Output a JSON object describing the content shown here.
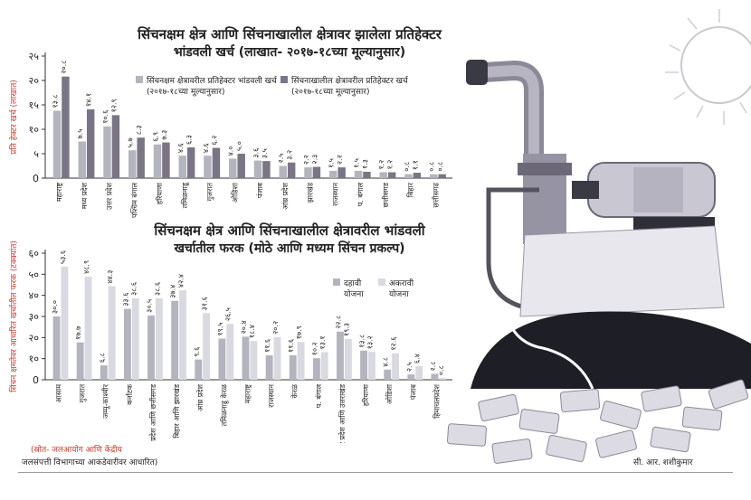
{
  "colors": {
    "light": "#d9d9e1",
    "mid": "#b4b4be",
    "dark": "#7a7585",
    "axis_label_red": "#c0392b",
    "ink": "#222222"
  },
  "chart1": {
    "type": "bar",
    "title_line1": "सिंचनक्षम क्षेत्र आणि सिंचनाखालील क्षेत्रावर झालेला प्रतिहेक्टर",
    "title_line2": "भांडवली खर्च (लाखात- २०१७-१८च्या मूल्यानुसार)",
    "ylabel": "प्रति हेक्टर खर्च (लाखात)",
    "ylim": [
      0,
      25
    ],
    "yticks": [
      0,
      5,
      10,
      15,
      20,
      25
    ],
    "ytick_labels": [
      "0",
      "५",
      "१०",
      "१५",
      "२०",
      "२५"
    ],
    "legend": [
      "सिंचनक्षम क्षेत्रावरील प्रतिहेक्टर भांडवली खर्च (२०१७-१८च्या मूल्यानुसार)",
      "सिंचनाखालील क्षेत्रावरील प्रतिहेक्टर खर्च (२०१७-१८च्या मूल्यानुसार)"
    ],
    "categories": [
      "महाराष्ट्र",
      "मध्य प्रदेश",
      "उत्तर प्रदेश",
      "पश्चिम बंगाल",
      "हरियाणा",
      "तमिळनाडू",
      "गुजरात",
      "ओडिशा",
      "पंजाब",
      "आंध्र प्रदेश",
      "झारखंड",
      "राजस्थान",
      "प. बंगाल",
      "छत्तीसगड",
      "बिहार",
      "छत्तीसगढ"
    ],
    "series": [
      {
        "values": [
          13.8,
          7.5,
          10.6,
          5.7,
          6.9,
          4.6,
          4.6,
          4.0,
          3.6,
          2.5,
          2.2,
          1.5,
          1.5,
          1.2,
          0.8,
          0.8
        ],
        "labels": [
          "१३.८",
          "७.५",
          "१०.६",
          "५.७",
          "६.९",
          "४.६",
          "४.६",
          "४.०",
          "३.६",
          "२.५",
          "२.२",
          "१.५",
          "१.५",
          "१.२",
          "०.८",
          "०.८"
        ]
      },
      {
        "values": [
          20.8,
          14.1,
          12.9,
          8.3,
          7.3,
          6.3,
          6.2,
          5.0,
          3.5,
          3.2,
          2.3,
          2.2,
          1.3,
          1.2,
          1.1,
          0.8
        ],
        "labels": [
          "२०.८",
          "१४.१",
          "१२.९",
          "८.३",
          "७.३",
          "६.३",
          "६.२",
          "५.०",
          "३.५",
          "३.२",
          "२.३",
          "२.२",
          "१.३",
          "१.२",
          "१.१",
          "०.८"
        ]
      }
    ]
  },
  "chart2": {
    "type": "bar",
    "title_line1": "सिंचनक्षम क्षेत्र आणि सिंचनाखालील क्षेत्रावरील भांडवली",
    "title_line2": "खर्चातील फरक (मोठे आणि मध्यम सिंचन प्रकल्प)",
    "ylabel": "सिंचन क्षमतेवर आधारित खर्चातील फरक (टक्क्यांत)",
    "ylim": [
      0,
      60
    ],
    "yticks": [
      0,
      10,
      20,
      30,
      40,
      50,
      60
    ],
    "ytick_labels": [
      "0",
      "१०",
      "२०",
      "३०",
      "४०",
      "५०",
      "६०"
    ],
    "legend": [
      "दहावी योजना",
      "अकरावी योजना"
    ],
    "categories": [
      "आसाम",
      "गुजरात",
      "जम्मू-काश्मीर",
      "कर्नाटक",
      "मध्य प्रदेश आणि छत्तीसगड",
      "बिहार आणि झारखंड",
      "आंध्र प्रदेश",
      "तमिळनाडू केरळ",
      "महाराष्ट्र",
      "राजस्थान",
      "केरळ",
      "प. बंगाल",
      "उत्तर प्रदेश आणि उत्तराखंड",
      "हरियाणा",
      "ओडिशा",
      "पंजाब",
      "हिमाचलप्रदेश"
    ],
    "series": [
      {
        "values": [
          30.0,
          17.7,
          6.8,
          33.6,
          30.5,
          37.4,
          9.6,
          19.5,
          20.4,
          11.6,
          11.6,
          10.2,
          22.8,
          13.8,
          4.8,
          2.5,
          2.8
        ],
        "labels": [
          "३०.०",
          "१७.७",
          "६.८",
          "३३.६",
          "३०.५",
          "३७.४",
          "९.६",
          "१९.५",
          "२०.४",
          "११.६",
          "११.६",
          "१०.२",
          "२२.८",
          "१३.८",
          "४.८",
          "२.५",
          "२.८"
        ]
      },
      {
        "values": [
          53.6,
          48.9,
          44.3,
          38.6,
          38.6,
          42.4,
          31.6,
          26.5,
          18.4,
          20.2,
          17.9,
          13.1,
          19.3,
          13.2,
          12.6,
          6.4,
          0.8
        ],
        "labels": [
          "५३.६",
          "४८.९",
          "४४.३",
          "३८.६",
          "३८.६",
          "४२.४",
          "३१.६",
          "२६.५",
          "१८.४",
          "२०.२",
          "१७.९",
          "१३.१",
          "१९.३",
          "१३.२",
          "१२.६",
          "६.४",
          "०.८"
        ]
      }
    ]
  },
  "footer": {
    "source_line1": "(स्रोत- जलआयोग आणि केंद्रीय",
    "source_line2": "जलसंपत्ती विभागाच्या आकडेवारीवर आधारित)",
    "credit": "सी. आर. शशीकुमार"
  }
}
